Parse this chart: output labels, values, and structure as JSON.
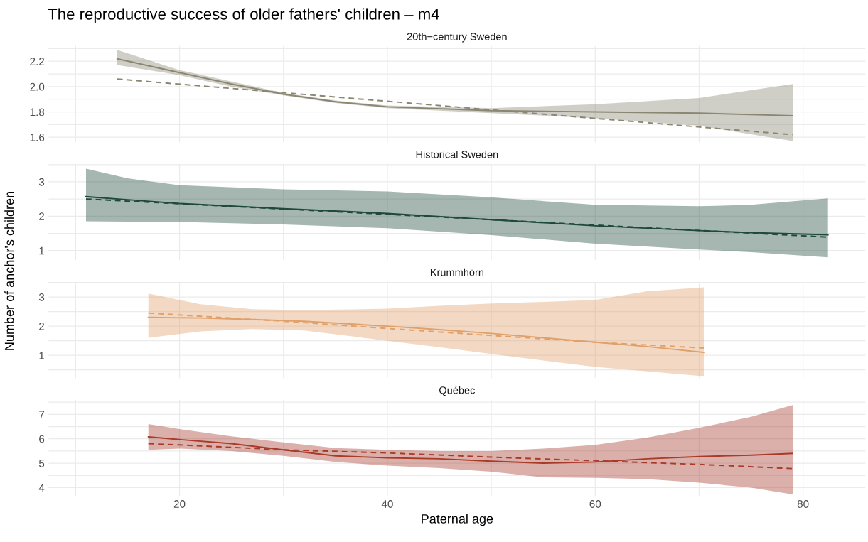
{
  "chart_data": [
    {
      "type": "line",
      "title": "The reproductive success of older fathers' children – m4",
      "subtitle": "20th−century Sweden",
      "ylabel": "Number of anchor's children",
      "grid": true,
      "tick_labels": "y",
      "xlim": [
        7.4,
        86
      ],
      "xticks": [
        {
          "value": 10,
          "label": null
        },
        20,
        {
          "value": 30,
          "label": null
        },
        40,
        {
          "value": 50,
          "label": null
        },
        60,
        {
          "value": 70,
          "label": null
        },
        80
      ],
      "ylim": [
        1.56,
        2.32
      ],
      "yticks": [
        1.6,
        {
          "value": 1.7,
          "label": null
        },
        1.8,
        {
          "value": 1.9,
          "label": null
        },
        {
          "value": 2,
          "label": "2.0"
        },
        {
          "value": 2.1,
          "label": null
        },
        2.2,
        {
          "value": 2.3,
          "label": null
        }
      ],
      "series": [
        {
          "color": "#8a8672",
          "line_style": "solid",
          "x": [
            14,
            20,
            25,
            30,
            35,
            40,
            50,
            60,
            70,
            79
          ],
          "values": [
            2.22,
            2.11,
            2.02,
            1.94,
            1.88,
            1.84,
            1.81,
            1.8,
            1.79,
            1.77
          ],
          "lower": [
            2.17,
            2.09,
            2.0,
            1.93,
            1.87,
            1.83,
            1.79,
            1.75,
            1.69,
            1.57
          ],
          "upper": [
            2.29,
            2.13,
            2.04,
            1.95,
            1.89,
            1.85,
            1.83,
            1.86,
            1.91,
            2.02
          ]
        },
        {
          "color": "#8a8672",
          "line_style": "dashed",
          "x": [
            14,
            46.5,
            79
          ],
          "values": [
            2.06,
            1.84,
            1.62
          ]
        }
      ]
    },
    {
      "type": "line",
      "subtitle": "Historical Sweden",
      "grid": true,
      "tick_labels": "y",
      "xlim": [
        7.4,
        86
      ],
      "xticks": [
        {
          "value": 10,
          "label": null
        },
        20,
        {
          "value": 30,
          "label": null
        },
        40,
        {
          "value": 50,
          "label": null
        },
        60,
        {
          "value": 70,
          "label": null
        },
        80
      ],
      "ylim": [
        0.72,
        3.52
      ],
      "yticks": [
        1,
        {
          "value": 1.5,
          "label": null
        },
        2,
        {
          "value": 2.5,
          "label": null
        },
        3,
        {
          "value": 3.5,
          "label": null
        }
      ],
      "series": [
        {
          "color": "#1f4a3a",
          "line_style": "solid",
          "x": [
            11,
            15,
            20,
            30,
            40,
            50,
            60,
            70,
            75,
            82.4
          ],
          "values": [
            2.57,
            2.48,
            2.37,
            2.22,
            2.08,
            1.9,
            1.72,
            1.58,
            1.52,
            1.46
          ],
          "lower": [
            1.85,
            1.84,
            1.83,
            1.76,
            1.65,
            1.45,
            1.2,
            1.03,
            0.95,
            0.8
          ],
          "upper": [
            3.38,
            3.1,
            2.9,
            2.78,
            2.72,
            2.55,
            2.33,
            2.29,
            2.33,
            2.52
          ]
        },
        {
          "color": "#1f4a3a",
          "line_style": "dashed",
          "x": [
            11,
            46.7,
            82.4
          ],
          "values": [
            2.5,
            1.95,
            1.39
          ]
        }
      ]
    },
    {
      "type": "line",
      "subtitle": "Krummhörn",
      "grid": true,
      "tick_labels": "y",
      "xlim": [
        7.4,
        86
      ],
      "xticks": [
        {
          "value": 10,
          "label": null
        },
        20,
        {
          "value": 30,
          "label": null
        },
        40,
        {
          "value": 50,
          "label": null
        },
        60,
        {
          "value": 70,
          "label": null
        },
        80
      ],
      "ylim": [
        0.22,
        3.52
      ],
      "yticks": [
        {
          "value": 0.5,
          "label": null
        },
        1,
        {
          "value": 1.5,
          "label": null
        },
        2,
        {
          "value": 2.5,
          "label": null
        },
        3,
        {
          "value": 3.5,
          "label": null
        }
      ],
      "series": [
        {
          "color": "#e0a06a",
          "line_style": "solid",
          "x": [
            17,
            22,
            27,
            32,
            40,
            45,
            50,
            55,
            60,
            65,
            70.5
          ],
          "values": [
            2.3,
            2.28,
            2.23,
            2.17,
            2.0,
            1.88,
            1.75,
            1.6,
            1.45,
            1.3,
            1.1
          ],
          "lower": [
            1.6,
            1.82,
            1.9,
            1.85,
            1.5,
            1.28,
            1.05,
            0.82,
            0.6,
            0.45,
            0.28
          ],
          "upper": [
            3.12,
            2.75,
            2.58,
            2.55,
            2.6,
            2.7,
            2.78,
            2.83,
            2.9,
            3.2,
            3.33
          ]
        },
        {
          "color": "#e0a06a",
          "line_style": "dashed",
          "x": [
            17,
            30,
            40,
            50,
            60,
            70.5
          ],
          "values": [
            2.45,
            2.17,
            1.92,
            1.68,
            1.45,
            1.25
          ]
        }
      ]
    },
    {
      "type": "line",
      "subtitle": "Québec",
      "xlabel": "Paternal age",
      "grid": true,
      "xlim": [
        7.4,
        86
      ],
      "xticks": [
        {
          "value": 10,
          "label": null
        },
        20,
        {
          "value": 30,
          "label": null
        },
        40,
        {
          "value": 50,
          "label": null
        },
        60,
        {
          "value": 70,
          "label": null
        },
        80
      ],
      "ylim": [
        3.66,
        7.6
      ],
      "yticks": [
        4,
        {
          "value": 4.5,
          "label": null
        },
        5,
        {
          "value": 5.5,
          "label": null
        },
        6,
        {
          "value": 6.5,
          "label": null
        },
        7,
        {
          "value": 7.5,
          "label": null
        }
      ],
      "series": [
        {
          "color": "#a83a2a",
          "line_style": "solid",
          "x": [
            17,
            20,
            25,
            30,
            35,
            40,
            45,
            50,
            55,
            60,
            65,
            70,
            75,
            79
          ],
          "values": [
            6.08,
            5.97,
            5.8,
            5.55,
            5.3,
            5.22,
            5.18,
            5.08,
            5.0,
            5.05,
            5.18,
            5.27,
            5.33,
            5.4
          ],
          "lower": [
            5.55,
            5.6,
            5.5,
            5.3,
            5.05,
            4.9,
            4.8,
            4.65,
            4.42,
            4.4,
            4.35,
            4.2,
            4.0,
            3.72
          ],
          "upper": [
            6.6,
            6.4,
            6.1,
            5.85,
            5.62,
            5.55,
            5.5,
            5.5,
            5.6,
            5.75,
            6.05,
            6.45,
            6.9,
            7.38
          ]
        },
        {
          "color": "#a83a2a",
          "line_style": "dashed",
          "x": [
            17,
            20,
            30,
            40,
            50,
            60,
            70,
            79
          ],
          "values": [
            5.8,
            5.75,
            5.55,
            5.42,
            5.25,
            5.1,
            4.95,
            4.78
          ]
        }
      ]
    }
  ]
}
